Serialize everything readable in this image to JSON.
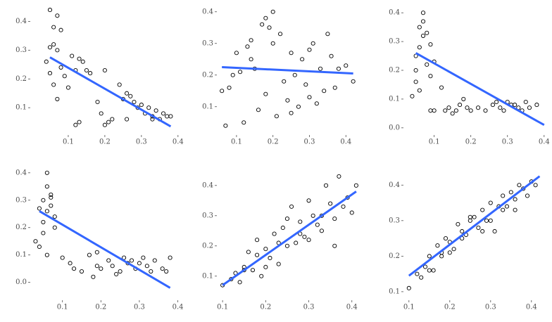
{
  "chart_data": [
    {
      "type": "scatter",
      "color": "#000000",
      "fit_color": "#3366ff",
      "x": [
        0.05,
        0.05,
        0.06,
        0.06,
        0.07,
        0.07,
        0.08,
        0.05,
        0.06,
        0.09,
        0.04,
        0.07,
        0.08,
        0.11,
        0.12,
        0.13,
        0.14,
        0.15,
        0.16,
        0.13,
        0.1,
        0.18,
        0.19,
        0.2,
        0.21,
        0.22,
        0.24,
        0.25,
        0.26,
        0.27,
        0.28,
        0.3,
        0.31,
        0.32,
        0.33,
        0.34,
        0.35,
        0.36,
        0.37,
        0.38,
        0.12,
        0.2,
        0.29,
        0.33,
        0.26
      ],
      "values": [
        0.31,
        0.44,
        0.32,
        0.38,
        0.42,
        0.3,
        0.37,
        0.22,
        0.18,
        0.21,
        0.26,
        0.13,
        0.24,
        0.28,
        0.23,
        0.27,
        0.26,
        0.23,
        0.22,
        0.05,
        0.17,
        0.12,
        0.08,
        0.23,
        0.05,
        0.06,
        0.18,
        0.13,
        0.15,
        0.14,
        0.12,
        0.11,
        0.08,
        0.1,
        0.07,
        0.09,
        0.06,
        0.08,
        0.07,
        0.07,
        0.04,
        0.04,
        0.1,
        0.06,
        0.06
      ],
      "fit": {
        "x": [
          0.05,
          0.38
        ],
        "y": [
          0.275,
          0.035
        ]
      },
      "xlim": [
        0,
        0.41
      ],
      "ylim": [
        0.01,
        0.45
      ],
      "xticks": [
        0.1,
        0.2,
        0.3,
        0.4
      ],
      "yticks": [
        0.1,
        0.2,
        0.3,
        0.4
      ]
    },
    {
      "type": "scatter",
      "color": "#000000",
      "fit_color": "#3366ff",
      "x": [
        0.06,
        0.07,
        0.08,
        0.09,
        0.1,
        0.11,
        0.12,
        0.13,
        0.14,
        0.15,
        0.16,
        0.17,
        0.18,
        0.18,
        0.19,
        0.2,
        0.2,
        0.21,
        0.22,
        0.23,
        0.24,
        0.25,
        0.26,
        0.27,
        0.28,
        0.29,
        0.3,
        0.3,
        0.31,
        0.32,
        0.33,
        0.34,
        0.35,
        0.36,
        0.37,
        0.38,
        0.4,
        0.42,
        0.14,
        0.25
      ],
      "values": [
        0.15,
        0.04,
        0.16,
        0.2,
        0.27,
        0.21,
        0.05,
        0.29,
        0.25,
        0.22,
        0.09,
        0.36,
        0.38,
        0.14,
        0.35,
        0.3,
        0.4,
        0.07,
        0.33,
        0.18,
        0.12,
        0.27,
        0.2,
        0.1,
        0.25,
        0.17,
        0.28,
        0.13,
        0.3,
        0.11,
        0.22,
        0.15,
        0.33,
        0.26,
        0.16,
        0.22,
        0.23,
        0.18,
        0.31,
        0.08
      ],
      "fit": {
        "x": [
          0.06,
          0.42
        ],
        "y": [
          0.225,
          0.205
        ]
      },
      "xlim": [
        0.05,
        0.44
      ],
      "ylim": [
        0.015,
        0.415
      ],
      "xticks": [
        0.1,
        0.2,
        0.3,
        0.4
      ],
      "yticks": [
        0.1,
        0.2,
        0.3,
        0.4
      ]
    },
    {
      "type": "scatter",
      "color": "#000000",
      "fit_color": "#3366ff",
      "x": [
        0.04,
        0.05,
        0.05,
        0.06,
        0.06,
        0.07,
        0.07,
        0.08,
        0.08,
        0.09,
        0.05,
        0.06,
        0.07,
        0.09,
        0.1,
        0.1,
        0.12,
        0.13,
        0.14,
        0.15,
        0.16,
        0.17,
        0.18,
        0.19,
        0.2,
        0.22,
        0.24,
        0.26,
        0.27,
        0.28,
        0.29,
        0.3,
        0.31,
        0.32,
        0.33,
        0.34,
        0.35,
        0.36,
        0.38,
        0.09
      ],
      "values": [
        0.11,
        0.25,
        0.16,
        0.35,
        0.28,
        0.4,
        0.32,
        0.33,
        0.22,
        0.29,
        0.2,
        0.13,
        0.37,
        0.18,
        0.23,
        0.06,
        0.14,
        0.06,
        0.07,
        0.05,
        0.06,
        0.08,
        0.1,
        0.07,
        0.06,
        0.07,
        0.06,
        0.08,
        0.09,
        0.07,
        0.06,
        0.09,
        0.08,
        0.08,
        0.07,
        0.06,
        0.09,
        0.07,
        0.08,
        0.06
      ],
      "fit": {
        "x": [
          0.05,
          0.4
        ],
        "y": [
          0.26,
          0.01
        ]
      },
      "xlim": [
        0.02,
        0.41
      ],
      "ylim": [
        -0.02,
        0.42
      ],
      "xticks": [
        0.1,
        0.2,
        0.3,
        0.4
      ],
      "yticks": [
        {
          "value": 0,
          "label": "0.0"
        },
        0.1,
        0.2,
        0.3,
        0.4
      ]
    },
    {
      "type": "scatter",
      "color": "#000000",
      "fit_color": "#3366ff",
      "x": [
        0.03,
        0.04,
        0.05,
        0.05,
        0.06,
        0.06,
        0.07,
        0.07,
        0.08,
        0.04,
        0.05,
        0.06,
        0.07,
        0.08,
        0.06,
        0.12,
        0.13,
        0.15,
        0.17,
        0.18,
        0.19,
        0.2,
        0.22,
        0.23,
        0.25,
        0.26,
        0.27,
        0.28,
        0.29,
        0.3,
        0.31,
        0.32,
        0.33,
        0.34,
        0.36,
        0.37,
        0.38,
        0.24,
        0.19,
        0.1
      ],
      "values": [
        0.15,
        0.27,
        0.3,
        0.22,
        0.35,
        0.4,
        0.32,
        0.28,
        0.2,
        0.13,
        0.18,
        0.1,
        0.31,
        0.24,
        0.26,
        0.07,
        0.05,
        0.04,
        0.1,
        0.02,
        0.06,
        0.05,
        0.08,
        0.06,
        0.04,
        0.09,
        0.07,
        0.08,
        0.05,
        0.07,
        0.09,
        0.06,
        0.04,
        0.08,
        0.05,
        0.04,
        0.09,
        0.03,
        0.11,
        0.09
      ],
      "fit": {
        "x": [
          0.04,
          0.38
        ],
        "y": [
          0.26,
          -0.02
        ]
      },
      "xlim": [
        0.02,
        0.41
      ],
      "ylim": [
        -0.06,
        0.42
      ],
      "xticks": [
        0.1,
        0.2,
        0.3,
        0.4
      ],
      "yticks": [
        {
          "value": 0,
          "label": "0.0"
        },
        0.1,
        0.2,
        0.3,
        0.4
      ]
    },
    {
      "type": "scatter",
      "color": "#000000",
      "fit_color": "#3366ff",
      "x": [
        0.1,
        0.12,
        0.13,
        0.14,
        0.15,
        0.16,
        0.17,
        0.18,
        0.19,
        0.2,
        0.21,
        0.22,
        0.23,
        0.24,
        0.25,
        0.26,
        0.27,
        0.28,
        0.29,
        0.3,
        0.31,
        0.32,
        0.33,
        0.34,
        0.35,
        0.36,
        0.37,
        0.38,
        0.39,
        0.4,
        0.41,
        0.2,
        0.25,
        0.3,
        0.18,
        0.28,
        0.33,
        0.23,
        0.15,
        0.36
      ],
      "values": [
        0.07,
        0.09,
        0.11,
        0.08,
        0.13,
        0.18,
        0.12,
        0.22,
        0.1,
        0.19,
        0.16,
        0.24,
        0.14,
        0.26,
        0.2,
        0.33,
        0.21,
        0.28,
        0.23,
        0.35,
        0.3,
        0.27,
        0.25,
        0.4,
        0.34,
        0.2,
        0.43,
        0.33,
        0.36,
        0.31,
        0.4,
        0.13,
        0.29,
        0.22,
        0.17,
        0.24,
        0.3,
        0.21,
        0.12,
        0.29
      ],
      "fit": {
        "x": [
          0.1,
          0.41
        ],
        "y": [
          0.07,
          0.38
        ]
      },
      "xlim": [
        0.09,
        0.42
      ],
      "ylim": [
        0.025,
        0.46
      ],
      "xticks": [
        0.1,
        0.2,
        0.3,
        0.4
      ],
      "yticks": [
        0.1,
        0.2,
        0.3,
        0.4
      ]
    },
    {
      "type": "scatter",
      "color": "#000000",
      "fit_color": "#3366ff",
      "x": [
        0.1,
        0.12,
        0.13,
        0.14,
        0.15,
        0.16,
        0.17,
        0.18,
        0.19,
        0.2,
        0.21,
        0.22,
        0.23,
        0.24,
        0.25,
        0.26,
        0.27,
        0.28,
        0.29,
        0.3,
        0.31,
        0.32,
        0.33,
        0.34,
        0.35,
        0.36,
        0.37,
        0.38,
        0.39,
        0.4,
        0.41,
        0.2,
        0.25,
        0.3,
        0.18,
        0.28,
        0.33,
        0.23,
        0.15,
        0.36
      ],
      "values": [
        0.11,
        0.15,
        0.14,
        0.17,
        0.2,
        0.16,
        0.23,
        0.21,
        0.25,
        0.24,
        0.22,
        0.29,
        0.27,
        0.26,
        0.3,
        0.31,
        0.28,
        0.33,
        0.3,
        0.35,
        0.27,
        0.34,
        0.37,
        0.34,
        0.38,
        0.33,
        0.4,
        0.39,
        0.37,
        0.41,
        0.4,
        0.21,
        0.31,
        0.3,
        0.2,
        0.27,
        0.33,
        0.25,
        0.16,
        0.36
      ],
      "fit": {
        "x": [
          0.1,
          0.42
        ],
        "y": [
          0.145,
          0.425
        ]
      },
      "xlim": [
        0.09,
        0.44
      ],
      "ylim": [
        0.08,
        0.45
      ],
      "xticks": [
        0.1,
        0.2,
        0.3,
        0.4
      ],
      "yticks": [
        0.1,
        0.2,
        0.3,
        0.4
      ]
    }
  ]
}
